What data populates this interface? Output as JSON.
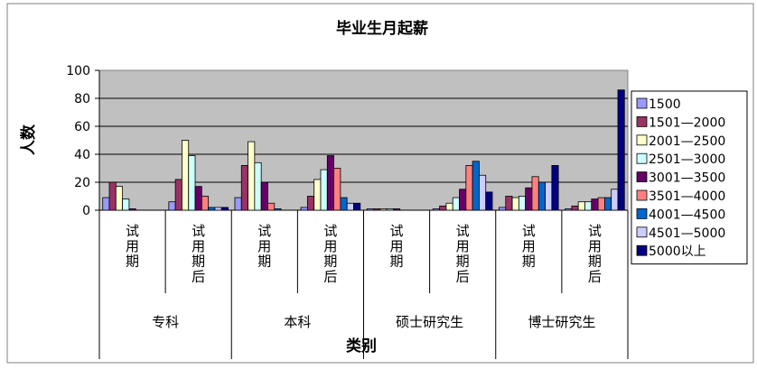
{
  "chart_data": {
    "type": "bar",
    "title": "毕业生月起薪",
    "ylabel": "人数",
    "xlabel": "类别",
    "ylim": [
      0,
      100
    ],
    "yticks": [
      0,
      20,
      40,
      60,
      80,
      100
    ],
    "grid": true,
    "plot_background": "#c0c0c0",
    "legend_position": "right",
    "groups": [
      "专科",
      "本科",
      "硕士研究生",
      "博士研究生"
    ],
    "categories": [
      "试用期",
      "试用期后",
      "试用期",
      "试用期后",
      "试用期",
      "试用期后",
      "试用期",
      "试用期后"
    ],
    "series": [
      {
        "name": "1500",
        "color": "#9999ff",
        "values": [
          9,
          6,
          9,
          2,
          1,
          1,
          2,
          1
        ]
      },
      {
        "name": "1501—2000",
        "color": "#993366",
        "values": [
          20,
          22,
          32,
          10,
          1,
          3,
          10,
          3
        ]
      },
      {
        "name": "2001—2500",
        "color": "#ffffcc",
        "values": [
          17,
          50,
          49,
          22,
          1,
          5,
          9,
          6
        ]
      },
      {
        "name": "2501—3000",
        "color": "#ccffff",
        "values": [
          8,
          39,
          34,
          29,
          1,
          9,
          10,
          6
        ]
      },
      {
        "name": "3001—3500",
        "color": "#660066",
        "values": [
          1,
          17,
          20,
          39,
          1,
          15,
          16,
          8
        ]
      },
      {
        "name": "3501—4000",
        "color": "#ff8080",
        "values": [
          0,
          10,
          5,
          30,
          0,
          32,
          24,
          9
        ]
      },
      {
        "name": "4001—4500",
        "color": "#0066cc",
        "values": [
          0,
          2,
          1,
          9,
          0,
          35,
          20,
          9
        ]
      },
      {
        "name": "4501—5000",
        "color": "#ccccff",
        "values": [
          0,
          2,
          0,
          5,
          0,
          25,
          20,
          15
        ]
      },
      {
        "name": "5000以上",
        "color": "#000080",
        "values": [
          0,
          2,
          0,
          5,
          0,
          13,
          32,
          86
        ]
      }
    ]
  }
}
